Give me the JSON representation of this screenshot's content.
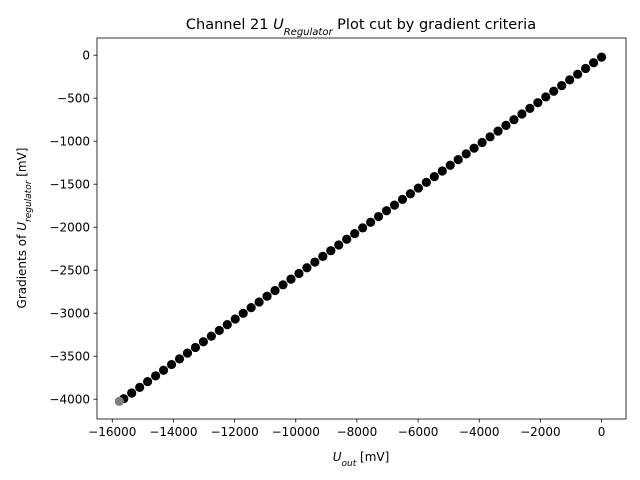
{
  "chart_data": {
    "type": "scatter",
    "title": {
      "prefix": "Channel 21 ",
      "var_main": "U",
      "var_sub": "Regulator",
      "suffix": " Plot cut by gradient criteria"
    },
    "xlabel": {
      "var_main": "U",
      "var_sub": "out",
      "suffix": " [mV]"
    },
    "ylabel": {
      "prefix": "Gradients of ",
      "var_main": "U",
      "var_sub": "regulator",
      "suffix": " [mV]"
    },
    "xlim": [
      -16500,
      800
    ],
    "ylim": [
      -4230,
      200
    ],
    "xticks": [
      -16000,
      -14000,
      -12000,
      -10000,
      -8000,
      -6000,
      -4000,
      -2000,
      0
    ],
    "yticks": [
      0,
      -500,
      -1000,
      -1500,
      -2000,
      -2500,
      -3000,
      -3500,
      -4000
    ],
    "grid": false,
    "colors": {
      "points": "#000000",
      "cut_point": "#808080"
    },
    "series": [
      {
        "name": "",
        "color": "#000000",
        "x": [
          0,
          -260,
          -521,
          -781,
          -1042,
          -1302,
          -1563,
          -1823,
          -2083,
          -2344,
          -2604,
          -2865,
          -3125,
          -3385,
          -3646,
          -3906,
          -4167,
          -4427,
          -4688,
          -4948,
          -5208,
          -5469,
          -5729,
          -5990,
          -6250,
          -6510,
          -6771,
          -7031,
          -7292,
          -7552,
          -7813,
          -8073,
          -8333,
          -8594,
          -8854,
          -9115,
          -9375,
          -9635,
          -9896,
          -10156,
          -10417,
          -10677,
          -10938,
          -11198,
          -11458,
          -11719,
          -11979,
          -12240,
          -12500,
          -12760,
          -13021,
          -13281,
          -13542,
          -13802,
          -14063,
          -14323,
          -14583,
          -14844,
          -15104,
          -15365,
          -15625
        ],
        "y": [
          -22,
          -88,
          -154,
          -221,
          -287,
          -353,
          -419,
          -485,
          -552,
          -618,
          -684,
          -750,
          -816,
          -883,
          -949,
          -1015,
          -1081,
          -1147,
          -1214,
          -1280,
          -1346,
          -1412,
          -1478,
          -1545,
          -1611,
          -1677,
          -1743,
          -1809,
          -1876,
          -1942,
          -2008,
          -2074,
          -2140,
          -2207,
          -2273,
          -2339,
          -2405,
          -2471,
          -2538,
          -2604,
          -2670,
          -2736,
          -2802,
          -2869,
          -2935,
          -3001,
          -3067,
          -3133,
          -3200,
          -3266,
          -3332,
          -3398,
          -3464,
          -3531,
          -3597,
          -3663,
          -3729,
          -3795,
          -3862,
          -3928,
          -3994
        ]
      },
      {
        "name": "",
        "color": "#808080",
        "x": [
          -15770
        ],
        "y": [
          -4025
        ]
      }
    ]
  }
}
